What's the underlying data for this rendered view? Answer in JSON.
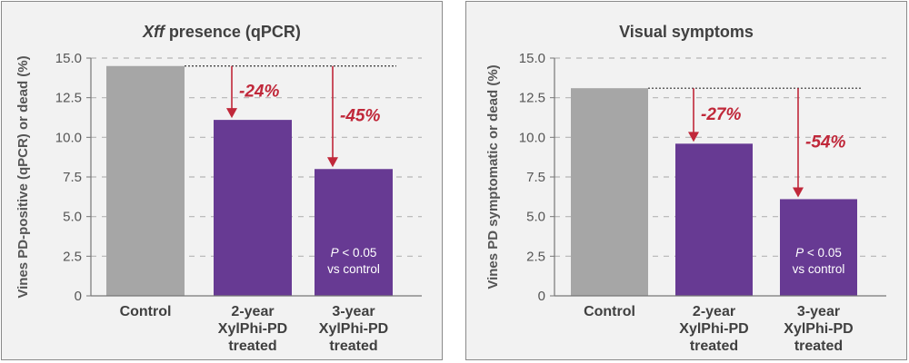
{
  "chart_data": [
    {
      "type": "bar",
      "title_italic": "Xff",
      "title_rest": " presence (qPCR)",
      "ylabel": "Vines PD-positive (qPCR) or dead (%)",
      "ylim": [
        0,
        15
      ],
      "yticks": [
        "0",
        "2.5",
        "5.0",
        "7.5",
        "10.0",
        "12.5",
        "15.0"
      ],
      "categories": [
        [
          "Control"
        ],
        [
          "2-year",
          "XylPhi-PD",
          "treated"
        ],
        [
          "3-year",
          "XylPhi-PD",
          "treated"
        ]
      ],
      "values": [
        14.5,
        11.1,
        8.0
      ],
      "bar_colors": [
        "#a6a6a6",
        "#673a93",
        "#673a93"
      ],
      "reductions": [
        "-24%",
        "-45%"
      ],
      "note_p": "P",
      "note_rest": " < 0.05",
      "note_line2": "vs control",
      "grid": "dashed horizontal",
      "reduction_color": "#c0283a"
    },
    {
      "type": "bar",
      "title_italic": "",
      "title_rest": "Visual symptoms",
      "ylabel": "Vines PD symptomatic or dead (%)",
      "ylim": [
        0,
        15
      ],
      "yticks": [
        "0",
        "2.5",
        "5.0",
        "7.5",
        "10.0",
        "12.5",
        "15.0"
      ],
      "categories": [
        [
          "Control"
        ],
        [
          "2-year",
          "XylPhi-PD",
          "treated"
        ],
        [
          "3-year",
          "XylPhi-PD",
          "treated"
        ]
      ],
      "values": [
        13.1,
        9.6,
        6.1
      ],
      "bar_colors": [
        "#a6a6a6",
        "#673a93",
        "#673a93"
      ],
      "reductions": [
        "-27%",
        "-54%"
      ],
      "note_p": "P",
      "note_rest": " < 0.05",
      "note_line2": "vs control",
      "grid": "dashed horizontal",
      "reduction_color": "#c0283a"
    }
  ]
}
